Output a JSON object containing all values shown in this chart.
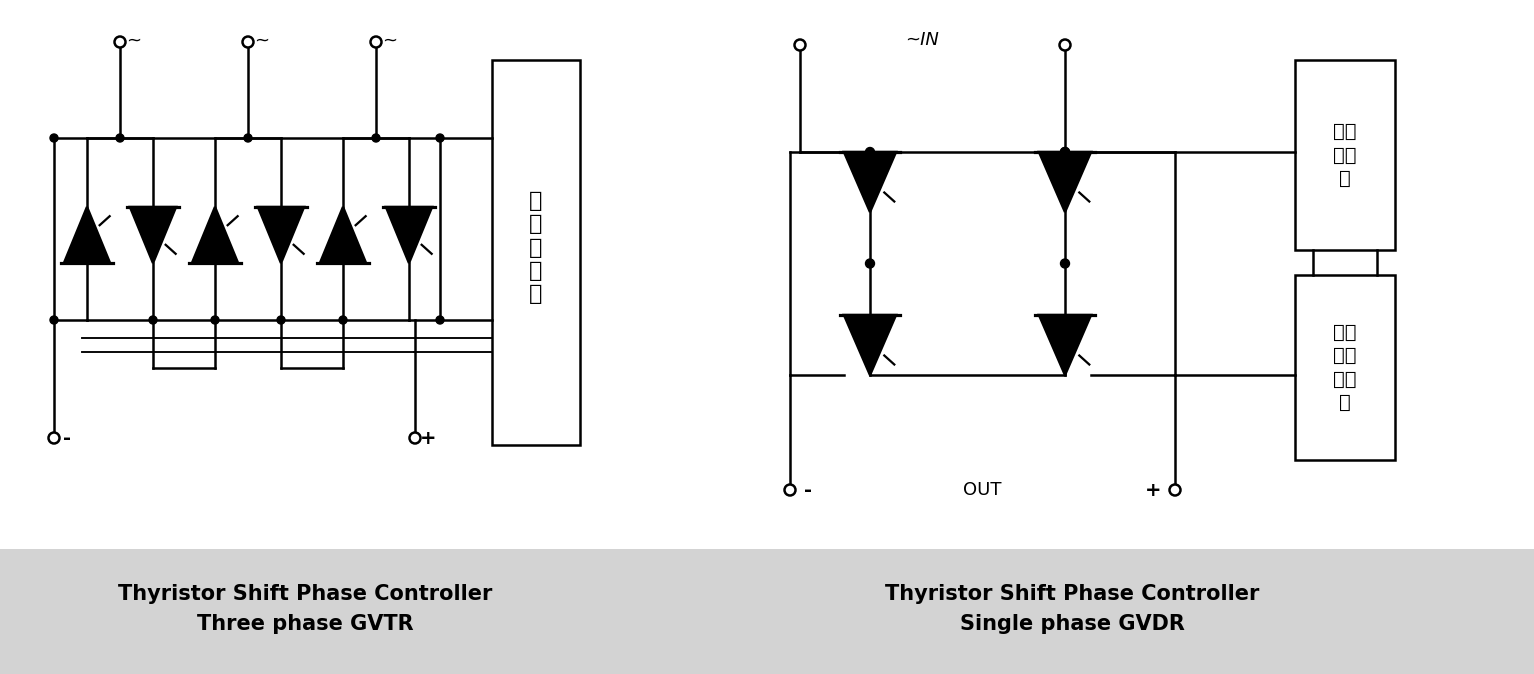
{
  "fig_width": 15.34,
  "fig_height": 6.74,
  "bg_color": "#ffffff",
  "label_bg_color": "#d3d3d3",
  "line_color": "#000000",
  "fill_color": "#000000",
  "label1_line1": "Thyristor Shift Phase Controller",
  "label1_line2": "Three phase GVTR",
  "label2_line1": "Thyristor Shift Phase Controller",
  "label2_line2": "Single phase GVDR",
  "box1_text": "移\n相\n控\n制\n器",
  "box2_text": "移相\n调控\n器",
  "box3_text": "稳压稳流\n控制板"
}
